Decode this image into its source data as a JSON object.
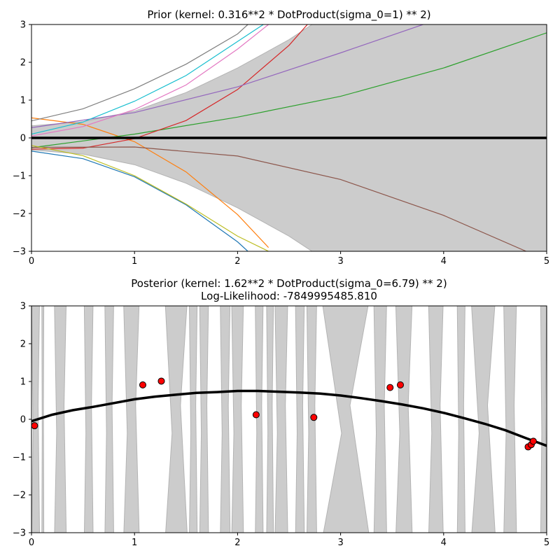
{
  "chart_data": [
    {
      "type": "line",
      "title": "Prior (kernel:  0.316**2 * DotProduct(sigma_0=1) ** 2)",
      "xlabel": "",
      "ylabel": "",
      "xlim": [
        0,
        5
      ],
      "ylim": [
        -3,
        3
      ],
      "xticks": [
        "0",
        "1",
        "2",
        "3",
        "4",
        "5"
      ],
      "yticks": [
        "−3",
        "−2",
        "−1",
        "0",
        "1",
        "2",
        "3"
      ],
      "grid": false,
      "band": {
        "color": "#cccccc",
        "edge_color": "#b3b3b3",
        "x": [
          0,
          0.5,
          1,
          1.5,
          2,
          2.5,
          3,
          3.5,
          4,
          4.5,
          5
        ],
        "upper": [
          0.32,
          0.43,
          0.71,
          1.2,
          1.85,
          2.6,
          3.5,
          4.5,
          5.6,
          6.8,
          8.2
        ],
        "lower": [
          -0.32,
          -0.43,
          -0.71,
          -1.2,
          -1.85,
          -2.6,
          -3.5,
          -4.5,
          -5.6,
          -6.8,
          -8.2
        ]
      },
      "mean": {
        "color": "#000000",
        "x": [
          0,
          5
        ],
        "y": [
          0,
          0
        ]
      },
      "series": [
        {
          "color": "#1f77b4",
          "x": [
            0,
            0.5,
            1,
            1.5,
            2,
            2.1
          ],
          "y": [
            -0.35,
            -0.55,
            -1.03,
            -1.77,
            -2.75,
            -3.0
          ]
        },
        {
          "color": "#ff7f0e",
          "x": [
            0,
            0.5,
            1,
            1.5,
            2,
            2.3
          ],
          "y": [
            0.53,
            0.36,
            -0.1,
            -0.9,
            -2.03,
            -2.9
          ]
        },
        {
          "color": "#2ca02c",
          "x": [
            0,
            1,
            2,
            3,
            4,
            5
          ],
          "y": [
            -0.26,
            0.1,
            0.55,
            1.1,
            1.85,
            2.78
          ]
        },
        {
          "color": "#d62728",
          "x": [
            0,
            0.5,
            1,
            1.5,
            2,
            2.5,
            3
          ],
          "y": [
            -0.3,
            -0.27,
            -0.02,
            0.46,
            1.28,
            2.45,
            4.0
          ]
        },
        {
          "color": "#9467bd",
          "x": [
            0,
            1,
            2,
            3,
            3.8
          ],
          "y": [
            0.27,
            0.67,
            1.35,
            2.25,
            3.0
          ]
        },
        {
          "color": "#8c564b",
          "x": [
            0,
            1,
            2,
            3,
            4,
            4.8
          ],
          "y": [
            -0.25,
            -0.24,
            -0.48,
            -1.1,
            -2.05,
            -3.0
          ]
        },
        {
          "color": "#e377c2",
          "x": [
            0,
            0.5,
            1,
            1.5,
            2,
            2.3
          ],
          "y": [
            0.05,
            0.3,
            0.75,
            1.4,
            2.35,
            3.0
          ]
        },
        {
          "color": "#7f7f7f",
          "x": [
            0,
            0.5,
            1,
            1.5,
            2,
            2.1
          ],
          "y": [
            0.45,
            0.77,
            1.3,
            1.95,
            2.75,
            3.0
          ]
        },
        {
          "color": "#bcbd22",
          "x": [
            0,
            0.5,
            1,
            1.5,
            2,
            2.3
          ],
          "y": [
            -0.2,
            -0.47,
            -1.0,
            -1.75,
            -2.6,
            -3.0
          ]
        },
        {
          "color": "#17becf",
          "x": [
            0,
            0.5,
            1,
            1.5,
            2,
            2.25
          ],
          "y": [
            0.1,
            0.42,
            0.97,
            1.65,
            2.55,
            3.0
          ]
        }
      ]
    },
    {
      "type": "line",
      "title": "Posterior (kernel: 1.62**2 * DotProduct(sigma_0=6.79) ** 2)",
      "subtitle": "Log-Likelihood: -7849995485.810",
      "xlabel": "",
      "ylabel": "",
      "xlim": [
        0,
        5
      ],
      "ylim": [
        -3,
        3
      ],
      "xticks": [
        "0",
        "1",
        "2",
        "3",
        "4",
        "5"
      ],
      "yticks": [
        "−3",
        "−2",
        "−1",
        "0",
        "1",
        "2",
        "3"
      ],
      "grid": false,
      "band_color": "#cccccc",
      "band_edge_color": "#b3b3b3",
      "band_segments": [
        [
          0.0,
          0.08
        ],
        [
          0.1,
          0.12
        ],
        [
          0.22,
          0.34
        ],
        [
          0.51,
          0.6
        ],
        [
          0.71,
          0.8
        ],
        [
          0.89,
          1.05
        ],
        [
          1.29,
          1.52
        ],
        [
          1.53,
          1.61
        ],
        [
          1.63,
          1.72
        ],
        [
          1.83,
          1.93
        ],
        [
          1.94,
          2.06
        ],
        [
          2.17,
          2.25
        ],
        [
          2.28,
          2.35
        ],
        [
          2.36,
          2.49
        ],
        [
          2.56,
          2.65
        ],
        [
          2.67,
          2.77
        ],
        [
          2.8,
          3.3
        ],
        [
          3.32,
          3.45
        ],
        [
          3.53,
          3.7
        ],
        [
          3.85,
          4.0
        ],
        [
          4.13,
          4.21
        ],
        [
          4.26,
          4.51
        ],
        [
          4.58,
          4.71
        ],
        [
          4.94,
          5.0
        ]
      ],
      "mean": {
        "color": "#000000",
        "x": [
          0,
          0.2,
          0.4,
          0.6,
          0.8,
          1.0,
          1.2,
          1.4,
          1.6,
          1.8,
          2.0,
          2.2,
          2.4,
          2.6,
          2.8,
          3.0,
          3.2,
          3.4,
          3.6,
          3.8,
          4.0,
          4.2,
          4.4,
          4.6,
          4.8,
          5.0
        ],
        "y": [
          -0.05,
          0.12,
          0.24,
          0.33,
          0.43,
          0.53,
          0.6,
          0.65,
          0.7,
          0.72,
          0.75,
          0.75,
          0.73,
          0.71,
          0.68,
          0.63,
          0.56,
          0.48,
          0.39,
          0.29,
          0.17,
          0.03,
          -0.12,
          -0.29,
          -0.5,
          -0.7
        ]
      },
      "points": {
        "color": "#ff0000",
        "edge_color": "#000000",
        "x": [
          0.03,
          1.08,
          1.26,
          2.18,
          2.74,
          3.48,
          3.58,
          4.82,
          4.85,
          4.87
        ],
        "y": [
          -0.17,
          0.91,
          1.01,
          0.12,
          0.05,
          0.84,
          0.91,
          -0.73,
          -0.67,
          -0.58
        ]
      }
    }
  ]
}
